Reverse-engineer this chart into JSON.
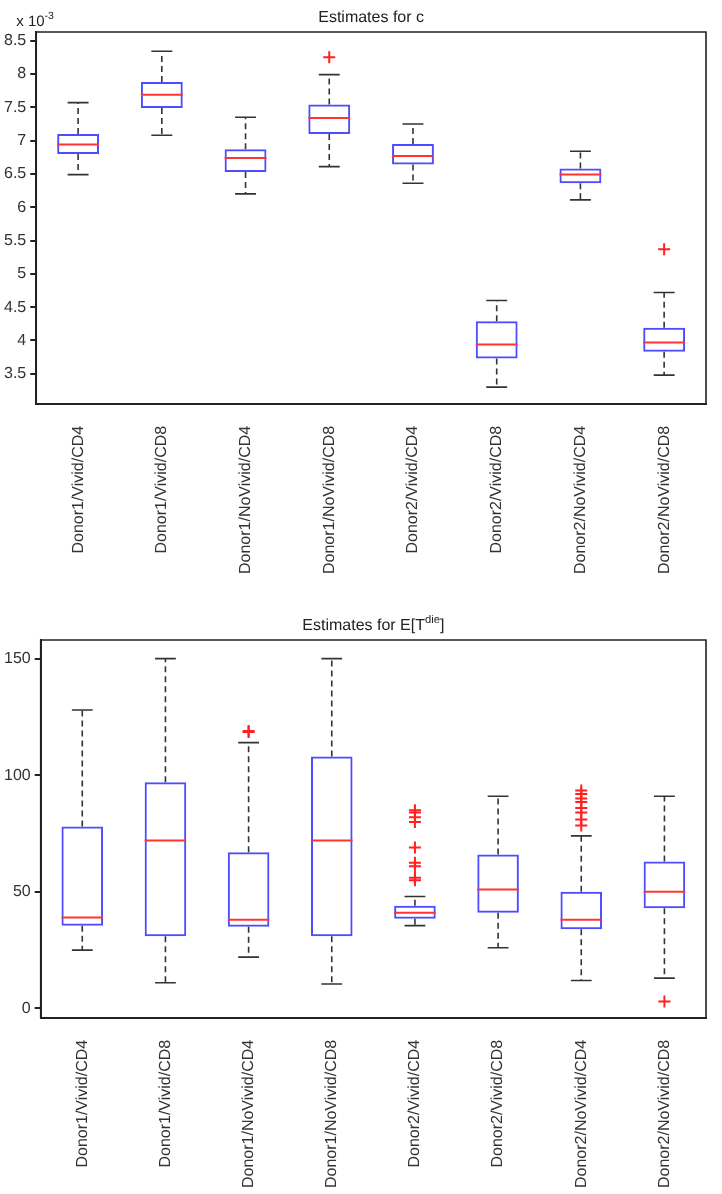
{
  "chart_data": [
    {
      "type": "box",
      "title": "Estimates for c",
      "annotations": [
        "x 10$^{-3}$"
      ],
      "categories": [
        "Donor1/Vivid/CD4",
        "Donor1/Vivid/CD8",
        "Donor1/NoVivid/CD4",
        "Donor1/NoVivid/CD8",
        "Donor2/Vivid/CD4",
        "Donor2/Vivid/CD8",
        "Donor2/NoVivid/CD4",
        "Donor2/NoVivid/CD8"
      ],
      "boxes": [
        {
          "low": 6.49,
          "q1": 6.8,
          "median": 6.94,
          "q3": 7.1,
          "high": 7.57
        },
        {
          "low": 7.08,
          "q1": 7.49,
          "median": 7.69,
          "q3": 7.88,
          "high": 8.34
        },
        {
          "low": 6.2,
          "q1": 6.53,
          "median": 6.74,
          "q3": 6.87,
          "high": 7.35
        },
        {
          "low": 6.61,
          "q1": 7.1,
          "median": 7.34,
          "q3": 7.54,
          "high": 7.99,
          "outliers": [
            8.25
          ]
        },
        {
          "low": 6.36,
          "q1": 6.64,
          "median": 6.77,
          "q3": 6.95,
          "high": 7.25
        },
        {
          "low": 3.3,
          "q1": 3.73,
          "median": 3.94,
          "q3": 4.29,
          "high": 4.6
        },
        {
          "low": 6.11,
          "q1": 6.36,
          "median": 6.49,
          "q3": 6.58,
          "high": 6.84
        },
        {
          "low": 3.48,
          "q1": 3.83,
          "median": 3.97,
          "q3": 4.19,
          "high": 4.72,
          "outliers": [
            5.37
          ]
        }
      ],
      "ylim": [
        3.05,
        8.63
      ],
      "yticks": [
        3.5,
        4,
        4.5,
        5,
        5.5,
        6,
        6.5,
        7,
        7.5,
        8,
        8.5
      ],
      "grid": false,
      "legend": false
    },
    {
      "type": "box",
      "title": "Estimates for E[T$^{die}$]",
      "categories": [
        "Donor1/Vivid/CD4",
        "Donor1/Vivid/CD8",
        "Donor1/NoVivid/CD4",
        "Donor1/NoVivid/CD8",
        "Donor2/Vivid/CD4",
        "Donor2/Vivid/CD8",
        "Donor2/NoVivid/CD4",
        "Donor2/NoVivid/CD8"
      ],
      "boxes": [
        {
          "low": 25,
          "q1": 35.5,
          "median": 39,
          "q3": 78,
          "high": 128
        },
        {
          "low": 11,
          "q1": 31,
          "median": 72,
          "q3": 97,
          "high": 150
        },
        {
          "low": 22,
          "q1": 35,
          "median": 38,
          "q3": 67,
          "high": 114,
          "outliers": [
            119,
            118.6
          ]
        },
        {
          "low": 10.5,
          "q1": 31,
          "median": 72,
          "q3": 108,
          "high": 150
        },
        {
          "low": 35.5,
          "q1": 38.5,
          "median": 41,
          "q3": 44,
          "high": 48,
          "outliers": [
            85,
            84,
            82,
            80,
            69,
            62.5,
            61,
            56,
            55
          ]
        },
        {
          "low": 26,
          "q1": 41,
          "median": 51,
          "q3": 66,
          "high": 91
        },
        {
          "low": 12,
          "q1": 34,
          "median": 38,
          "q3": 50,
          "high": 74,
          "outliers": [
            93.5,
            92,
            90,
            88.5,
            86,
            84,
            81,
            78.5
          ]
        },
        {
          "low": 13,
          "q1": 43,
          "median": 50,
          "q3": 63,
          "high": 91,
          "outliers": [
            3
          ]
        }
      ],
      "ylim": [
        -4,
        158
      ],
      "yticks": [
        0,
        50,
        100,
        150
      ],
      "grid": false,
      "legend": false
    }
  ]
}
